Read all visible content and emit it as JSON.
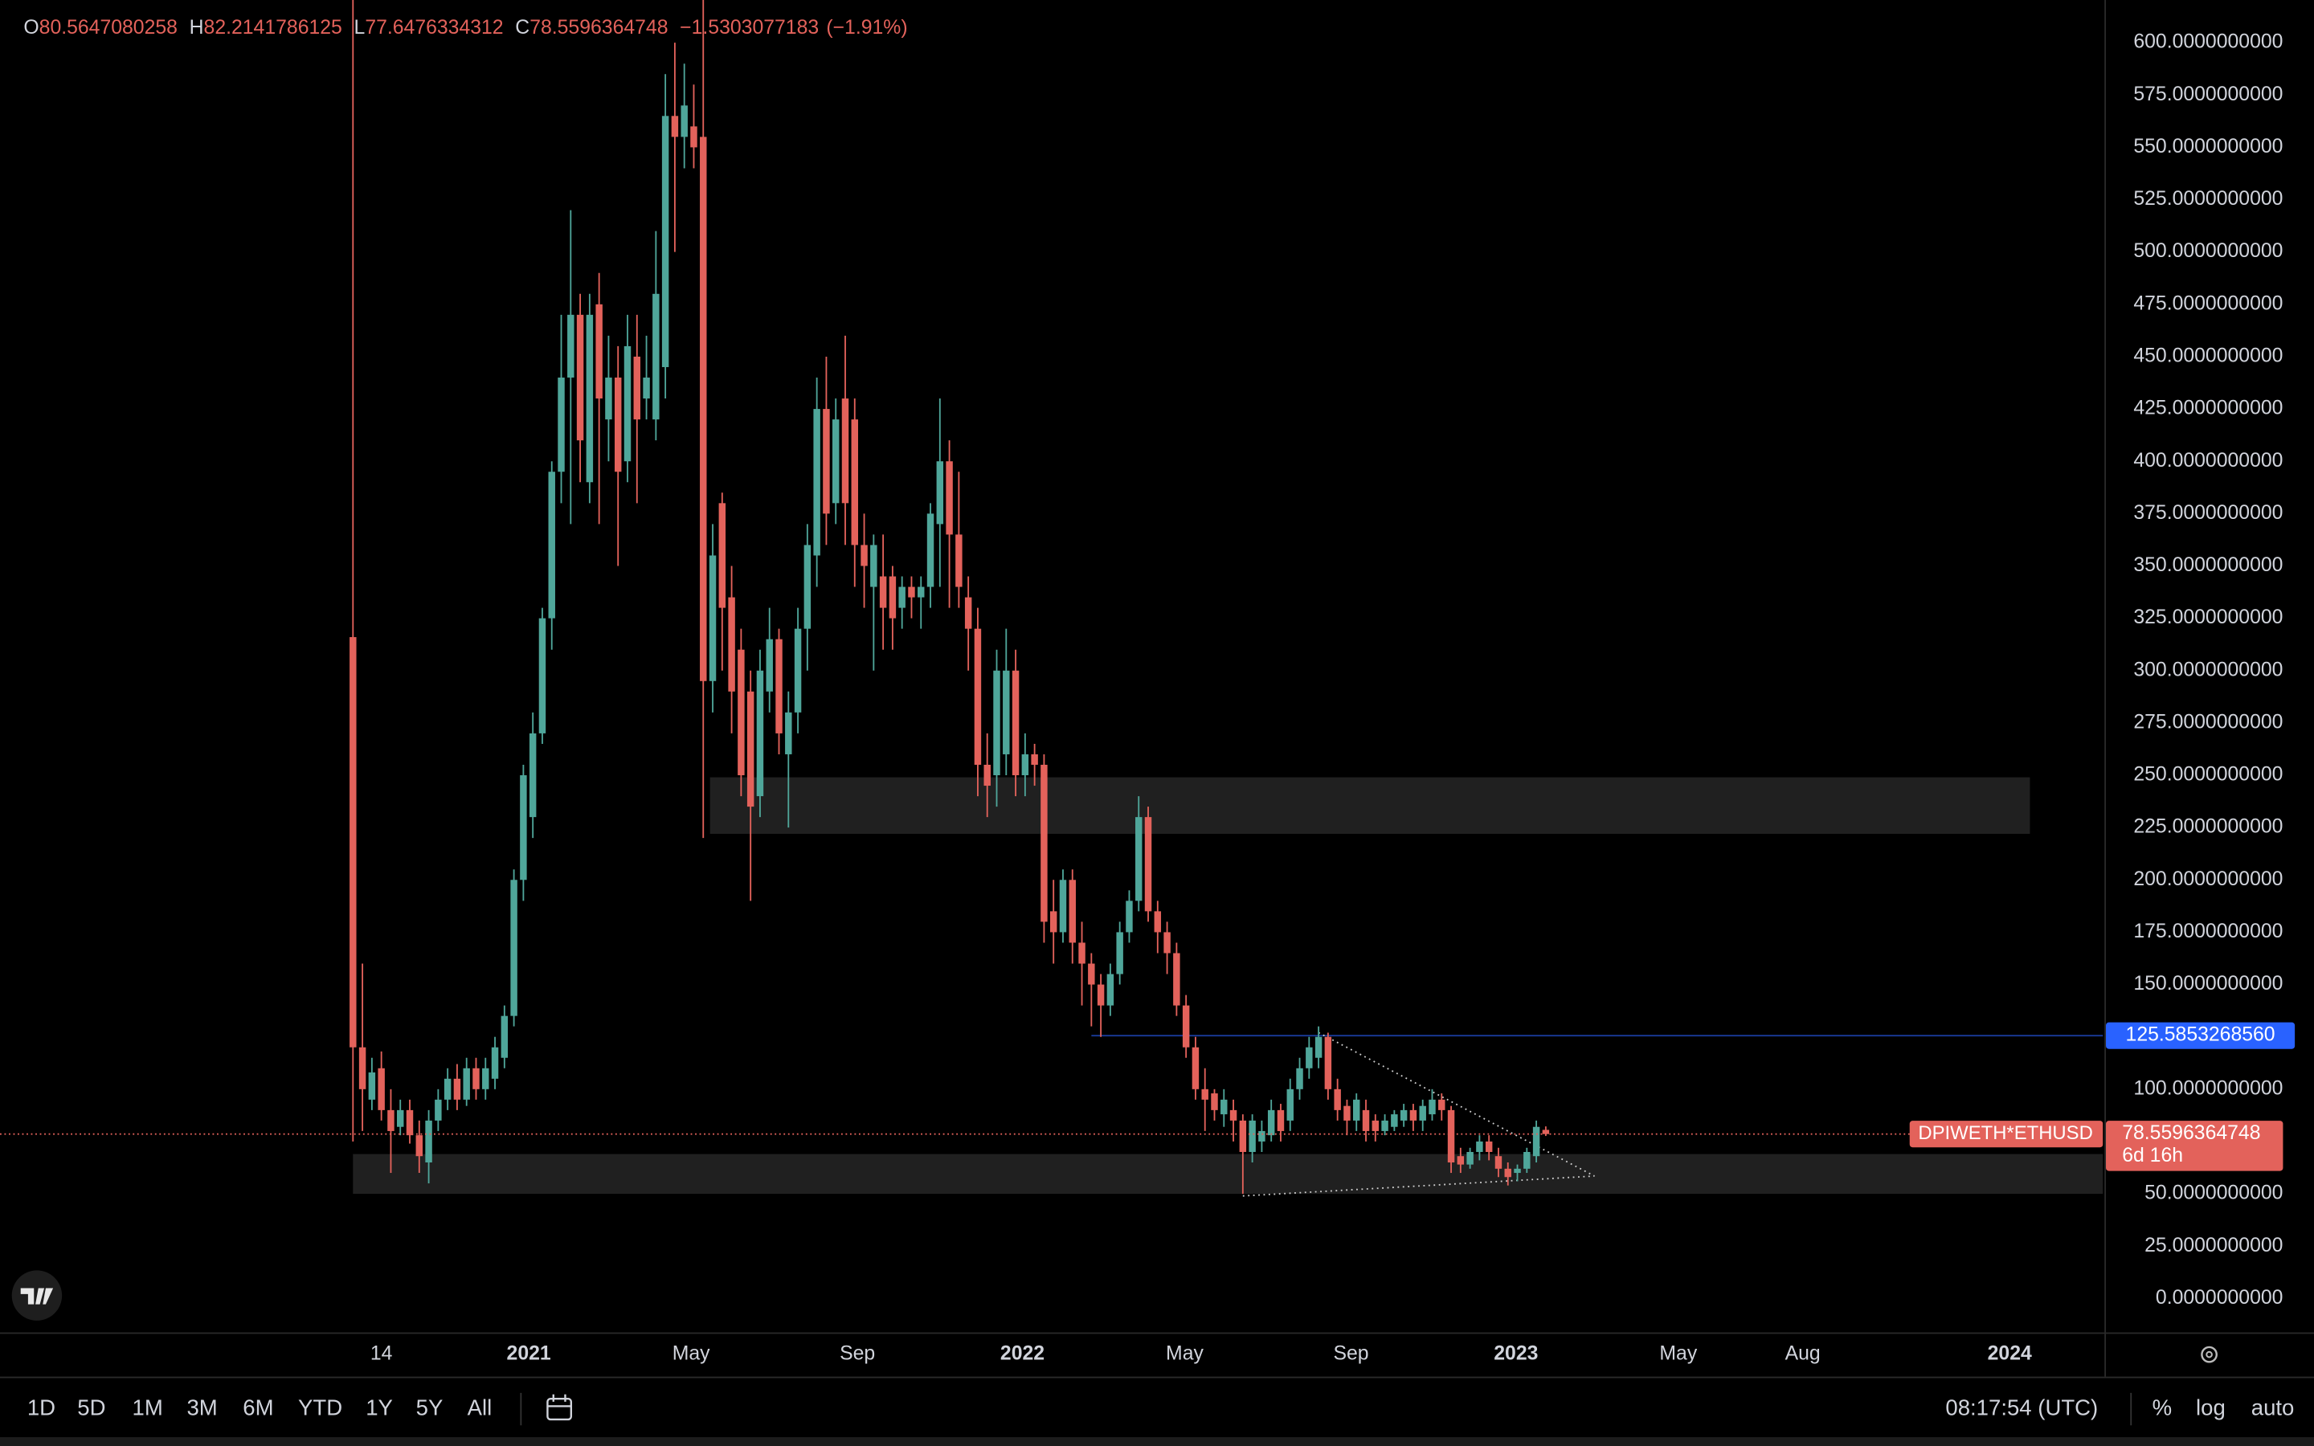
{
  "chart_data": {
    "type": "candlestick",
    "symbol": "DPIWETH*ETHUSD",
    "x": [
      "2020-08-24",
      "2020-08-31",
      "2020-09-07",
      "2020-09-14",
      "2020-09-21",
      "2020-09-28",
      "2020-10-05",
      "2020-10-12",
      "2020-10-19",
      "2020-10-26",
      "2020-11-02",
      "2020-11-09",
      "2020-11-16",
      "2020-11-23",
      "2020-11-30",
      "2020-12-07",
      "2020-12-14",
      "2020-12-21",
      "2020-12-28",
      "2021-01-04",
      "2021-01-11",
      "2021-01-18",
      "2021-01-25",
      "2021-02-01",
      "2021-02-08",
      "2021-02-15",
      "2021-02-22",
      "2021-03-01",
      "2021-03-08",
      "2021-03-15",
      "2021-03-22",
      "2021-03-29",
      "2021-04-05",
      "2021-04-12",
      "2021-04-19",
      "2021-04-26",
      "2021-05-03",
      "2021-05-10",
      "2021-05-17",
      "2021-05-24",
      "2021-05-31",
      "2021-06-07",
      "2021-06-14",
      "2021-06-21",
      "2021-06-28",
      "2021-07-05",
      "2021-07-12",
      "2021-07-19",
      "2021-07-26",
      "2021-08-02",
      "2021-08-09",
      "2021-08-16",
      "2021-08-23",
      "2021-08-30",
      "2021-09-06",
      "2021-09-13",
      "2021-09-20",
      "2021-09-27",
      "2021-10-04",
      "2021-10-11",
      "2021-10-18",
      "2021-10-25",
      "2021-11-01",
      "2021-11-08",
      "2021-11-15",
      "2021-11-22",
      "2021-11-29",
      "2021-12-06",
      "2021-12-13",
      "2021-12-20",
      "2021-12-27",
      "2022-01-03",
      "2022-01-10",
      "2022-01-17",
      "2022-01-24",
      "2022-01-31",
      "2022-02-07",
      "2022-02-14",
      "2022-02-21",
      "2022-02-28",
      "2022-03-07",
      "2022-03-14",
      "2022-03-21",
      "2022-03-28",
      "2022-04-04",
      "2022-04-11",
      "2022-04-18",
      "2022-04-25",
      "2022-05-02",
      "2022-05-09",
      "2022-05-16",
      "2022-05-23",
      "2022-05-30",
      "2022-06-06",
      "2022-06-13",
      "2022-06-20",
      "2022-06-27",
      "2022-07-04",
      "2022-07-11",
      "2022-07-18",
      "2022-07-25",
      "2022-08-01",
      "2022-08-08",
      "2022-08-15",
      "2022-08-22",
      "2022-08-29",
      "2022-09-05",
      "2022-09-12",
      "2022-09-19",
      "2022-09-26",
      "2022-10-03",
      "2022-10-10",
      "2022-10-17",
      "2022-10-24",
      "2022-10-31",
      "2022-11-07",
      "2022-11-14",
      "2022-11-21",
      "2022-11-28",
      "2022-12-05",
      "2022-12-12",
      "2022-12-19",
      "2022-12-26",
      "2023-01-02",
      "2023-01-09",
      "2023-01-16",
      "2023-01-23"
    ],
    "open": [
      316,
      120,
      95,
      110,
      90,
      82,
      90,
      78,
      65,
      85,
      95,
      105,
      95,
      110,
      100,
      105,
      115,
      135,
      200,
      230,
      270,
      325,
      395,
      440,
      470,
      390,
      475,
      420,
      440,
      400,
      450,
      430,
      420,
      445,
      565,
      555,
      560,
      555,
      295,
      380,
      335,
      310,
      290,
      240,
      290,
      315,
      260,
      280,
      320,
      355,
      425,
      380,
      430,
      420,
      360,
      340,
      345,
      345,
      330,
      340,
      335,
      340,
      370,
      400,
      365,
      335,
      320,
      255,
      250,
      260,
      300,
      250,
      260,
      255,
      185,
      175,
      200,
      170,
      160,
      150,
      140,
      155,
      175,
      190,
      230,
      185,
      175,
      165,
      140,
      120,
      100,
      98,
      88,
      90,
      85,
      70,
      75,
      78,
      90,
      85,
      100,
      110,
      115,
      125,
      100,
      92,
      85,
      90,
      85,
      80,
      82,
      85,
      90,
      85,
      88,
      95,
      90,
      68,
      64,
      70,
      75,
      68,
      62,
      60,
      62,
      68,
      80.5647080258
    ],
    "high": [
      950,
      160,
      115,
      118,
      100,
      95,
      95,
      85,
      90,
      100,
      110,
      112,
      115,
      115,
      115,
      125,
      140,
      205,
      255,
      280,
      330,
      400,
      470,
      520,
      480,
      480,
      490,
      460,
      455,
      470,
      470,
      460,
      510,
      585,
      600,
      590,
      580,
      640,
      370,
      385,
      350,
      320,
      300,
      310,
      330,
      320,
      290,
      330,
      370,
      440,
      450,
      430,
      460,
      430,
      375,
      365,
      365,
      350,
      345,
      345,
      345,
      380,
      430,
      410,
      395,
      345,
      330,
      270,
      310,
      320,
      310,
      270,
      265,
      260,
      200,
      205,
      205,
      180,
      165,
      155,
      160,
      180,
      195,
      240,
      235,
      190,
      180,
      170,
      145,
      125,
      110,
      100,
      100,
      95,
      88,
      88,
      85,
      95,
      93,
      105,
      115,
      125,
      130,
      127,
      105,
      95,
      98,
      95,
      88,
      88,
      90,
      93,
      93,
      95,
      100,
      98,
      92,
      72,
      72,
      78,
      78,
      72,
      65,
      64,
      72,
      85,
      82.2141786125
    ],
    "low": [
      75,
      80,
      90,
      85,
      60,
      78,
      74,
      60,
      55,
      80,
      90,
      90,
      92,
      95,
      95,
      100,
      110,
      130,
      190,
      220,
      265,
      310,
      380,
      370,
      390,
      380,
      370,
      400,
      350,
      390,
      380,
      420,
      410,
      430,
      500,
      540,
      540,
      220,
      280,
      300,
      270,
      240,
      190,
      230,
      280,
      260,
      225,
      270,
      300,
      340,
      360,
      370,
      360,
      340,
      330,
      300,
      310,
      310,
      320,
      325,
      320,
      330,
      340,
      330,
      330,
      300,
      240,
      230,
      235,
      250,
      240,
      240,
      245,
      170,
      160,
      170,
      160,
      140,
      130,
      125,
      135,
      150,
      170,
      185,
      180,
      165,
      155,
      135,
      115,
      95,
      80,
      85,
      82,
      75,
      50,
      65,
      70,
      75,
      75,
      80,
      95,
      105,
      110,
      95,
      85,
      78,
      80,
      75,
      75,
      78,
      80,
      82,
      80,
      80,
      85,
      85,
      60,
      60,
      62,
      66,
      66,
      58,
      54,
      56,
      60,
      65,
      77.6476334312
    ],
    "close": [
      120,
      100,
      108,
      90,
      80,
      90,
      78,
      68,
      85,
      95,
      105,
      95,
      110,
      100,
      110,
      120,
      135,
      200,
      250,
      270,
      325,
      395,
      440,
      470,
      410,
      470,
      430,
      440,
      395,
      455,
      420,
      440,
      480,
      565,
      555,
      570,
      550,
      295,
      355,
      330,
      290,
      250,
      235,
      300,
      315,
      270,
      280,
      320,
      360,
      425,
      375,
      420,
      380,
      360,
      350,
      360,
      330,
      325,
      340,
      335,
      340,
      375,
      400,
      365,
      340,
      320,
      255,
      245,
      300,
      300,
      250,
      260,
      255,
      180,
      175,
      200,
      170,
      160,
      150,
      140,
      155,
      175,
      190,
      230,
      185,
      175,
      165,
      140,
      120,
      100,
      95,
      90,
      95,
      85,
      70,
      85,
      80,
      90,
      80,
      100,
      110,
      120,
      125,
      100,
      90,
      85,
      95,
      80,
      80,
      85,
      88,
      90,
      85,
      92,
      95,
      90,
      65,
      64,
      70,
      75,
      70,
      62,
      58,
      62,
      70,
      82,
      78.5596364748
    ],
    "up_color": "#4fa69a",
    "down_color": "#e3625b",
    "grid": false,
    "xlim": [
      "2019-12-07",
      "2024-03-10"
    ],
    "xticks": [
      {
        "value": "2020-09-14",
        "label": "14"
      },
      {
        "value": "2021-01-01",
        "label": "2021"
      },
      {
        "value": "2021-05-01",
        "label": "May"
      },
      {
        "value": "2021-09-01",
        "label": "Sep"
      },
      {
        "value": "2022-01-01",
        "label": "2022"
      },
      {
        "value": "2022-05-01",
        "label": "May"
      },
      {
        "value": "2022-09-01",
        "label": "Sep"
      },
      {
        "value": "2023-01-01",
        "label": "2023"
      },
      {
        "value": "2023-05-01",
        "label": "May"
      },
      {
        "value": "2023-08-01",
        "label": "Aug"
      },
      {
        "value": "2024-01-01",
        "label": "2024"
      }
    ],
    "ylim": [
      -16.2,
      620.4
    ],
    "yticks": [
      {
        "value": 0,
        "label": "0.0000000000"
      },
      {
        "value": 25,
        "label": "25.0000000000"
      },
      {
        "value": 50,
        "label": "50.0000000000"
      },
      {
        "value": 75,
        "label": "75.0000000000"
      },
      {
        "value": 100,
        "label": "100.0000000000"
      },
      {
        "value": 125,
        "label": "125.0000000000"
      },
      {
        "value": 150,
        "label": "150.0000000000"
      },
      {
        "value": 175,
        "label": "175.0000000000"
      },
      {
        "value": 200,
        "label": "200.0000000000"
      },
      {
        "value": 225,
        "label": "225.0000000000"
      },
      {
        "value": 250,
        "label": "250.0000000000"
      },
      {
        "value": 275,
        "label": "275.0000000000"
      },
      {
        "value": 300,
        "label": "300.0000000000"
      },
      {
        "value": 325,
        "label": "325.0000000000"
      },
      {
        "value": 350,
        "label": "350.0000000000"
      },
      {
        "value": 375,
        "label": "375.0000000000"
      },
      {
        "value": 400,
        "label": "400.0000000000"
      },
      {
        "value": 425,
        "label": "425.0000000000"
      },
      {
        "value": 450,
        "label": "450.0000000000"
      },
      {
        "value": 475,
        "label": "475.0000000000"
      },
      {
        "value": 500,
        "label": "500.0000000000"
      },
      {
        "value": 525,
        "label": "525.0000000000"
      },
      {
        "value": 550,
        "label": "550.0000000000"
      },
      {
        "value": 575,
        "label": "575.0000000000"
      },
      {
        "value": 600,
        "label": "600.0000000000"
      }
    ],
    "ohlc_header": {
      "labels": [
        "O",
        "H",
        "L",
        "C"
      ],
      "values": [
        80.5647080258,
        82.2141786125,
        77.6476334312,
        78.5596364748
      ],
      "change": "−1.5303077183",
      "change_percent": "(−1.91%)"
    },
    "last_price": {
      "value": 78.5596364748,
      "countdown": "6d 16h"
    },
    "horizontal_line": {
      "value": 125.585326856,
      "label": "125.5853268560",
      "x_start": "2022-02-21",
      "color": "#2962ff"
    },
    "zones": [
      {
        "x": [
          "2021-05-15",
          "2024-01-16"
        ],
        "y": [
          222,
          249
        ]
      },
      {
        "x": [
          "2020-08-24",
          "2024-03-10"
        ],
        "y": [
          50,
          69
        ]
      }
    ],
    "trendlines": [
      {
        "x": [
          "2022-08-08",
          "2023-02-28"
        ],
        "y": [
          127,
          58.5
        ]
      },
      {
        "x": [
          "2022-06-13",
          "2023-02-28"
        ],
        "y": [
          49,
          58.5
        ]
      }
    ]
  },
  "toolbar": {
    "ranges": [
      "1D",
      "5D",
      "1M",
      "3M",
      "6M",
      "YTD",
      "1Y",
      "5Y",
      "All"
    ],
    "time": "08:17:54 (UTC)",
    "options": [
      "%",
      "log",
      "auto"
    ]
  }
}
